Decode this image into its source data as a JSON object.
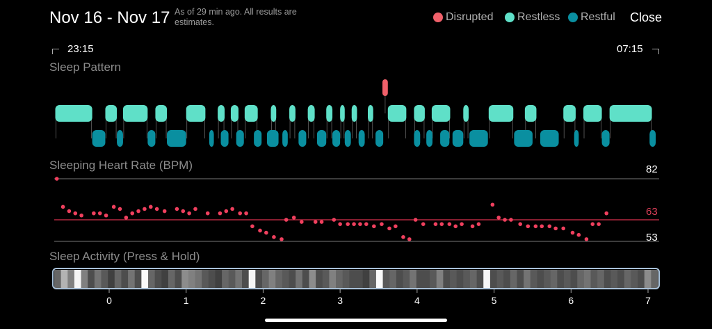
{
  "header": {
    "title": "Nov 16 - Nov 17",
    "subtitle": "As of 29 min ago. All results are estimates.",
    "close_label": "Close"
  },
  "legend": [
    {
      "label": "Disrupted",
      "color": "#f0606a"
    },
    {
      "label": "Restless",
      "color": "#5fe0c8"
    },
    {
      "label": "Restful",
      "color": "#0a8fa0"
    }
  ],
  "time_range": {
    "start": "23:15",
    "end": "07:15"
  },
  "sections": {
    "sleep_pattern": "Sleep Pattern",
    "heart_rate": "Sleeping Heart Rate (BPM)",
    "activity": "Sleep Activity (Press & Hold)"
  },
  "heart_rate_scale": {
    "max": "82",
    "avg": "63",
    "min": "53"
  },
  "x_axis": [
    "0",
    "1",
    "2",
    "3",
    "4",
    "5",
    "6",
    "7"
  ],
  "chart_data": [
    {
      "type": "scatter",
      "title": "Sleeping Heart Rate (BPM)",
      "x_range": [
        -0.7,
        7.1
      ],
      "y_range": [
        53,
        82
      ],
      "reference_lines": {
        "max": 82,
        "avg": 63,
        "min": 53
      },
      "x": [
        -0.68,
        -0.6,
        -0.52,
        -0.44,
        -0.36,
        -0.2,
        -0.12,
        -0.04,
        0.06,
        0.14,
        0.22,
        0.3,
        0.38,
        0.46,
        0.54,
        0.62,
        0.72,
        0.88,
        0.96,
        1.04,
        1.12,
        1.28,
        1.44,
        1.52,
        1.6,
        1.7,
        1.78,
        1.86,
        1.96,
        2.04,
        2.14,
        2.24,
        2.3,
        2.4,
        2.5,
        2.68,
        2.76,
        2.92,
        3.0,
        3.1,
        3.18,
        3.26,
        3.34,
        3.44,
        3.54,
        3.64,
        3.72,
        3.82,
        3.9,
        3.98,
        4.08,
        4.24,
        4.32,
        4.42,
        4.5,
        4.58,
        4.72,
        4.8,
        4.98,
        5.06,
        5.14,
        5.22,
        5.34,
        5.44,
        5.54,
        5.62,
        5.72,
        5.8,
        5.9,
        6.02,
        6.1,
        6.2,
        6.28,
        6.36,
        6.46
      ],
      "y": [
        82,
        69,
        67,
        66,
        65,
        66,
        66,
        65,
        69,
        68,
        64,
        66,
        67,
        68,
        69,
        68,
        67,
        68,
        67,
        66,
        68,
        66,
        66,
        67,
        68,
        66,
        66,
        60,
        58,
        57,
        55,
        54,
        63,
        64,
        62,
        62,
        62,
        63,
        61,
        61,
        61,
        61,
        61,
        60,
        61,
        59,
        60,
        55,
        54,
        63,
        61,
        61,
        61,
        61,
        60,
        61,
        60,
        61,
        70,
        64,
        63,
        63,
        61,
        60,
        60,
        60,
        60,
        59,
        59,
        57,
        56,
        54,
        61,
        61,
        66
      ]
    },
    {
      "type": "bar",
      "title": "Sleep Pattern",
      "categories": [
        "Disrupted",
        "Restless",
        "Restful"
      ],
      "restless_segments": [
        [
          -0.7,
          -0.22
        ],
        [
          -0.05,
          0.1
        ],
        [
          0.18,
          0.5
        ],
        [
          0.6,
          0.75
        ],
        [
          1.0,
          1.25
        ],
        [
          1.41,
          1.5
        ],
        [
          1.58,
          1.68
        ],
        [
          1.76,
          1.93
        ],
        [
          2.1,
          2.17
        ],
        [
          2.34,
          2.42
        ],
        [
          2.58,
          2.67
        ],
        [
          2.82,
          2.9
        ],
        [
          3.0,
          3.06
        ],
        [
          3.15,
          3.22
        ],
        [
          3.36,
          3.43
        ],
        [
          3.62,
          3.86
        ],
        [
          3.96,
          4.1
        ],
        [
          4.19,
          4.43
        ],
        [
          4.6,
          4.67
        ],
        [
          4.93,
          5.25
        ],
        [
          5.4,
          5.55
        ],
        [
          5.9,
          6.06
        ],
        [
          6.16,
          6.4
        ],
        [
          6.5,
          7.05
        ]
      ],
      "restful_segments": [
        [
          -0.22,
          -0.05
        ],
        [
          0.1,
          0.18
        ],
        [
          0.5,
          0.6
        ],
        [
          0.75,
          1.0
        ],
        [
          1.3,
          1.36
        ],
        [
          1.45,
          1.55
        ],
        [
          1.65,
          1.75
        ],
        [
          1.88,
          1.98
        ],
        [
          2.05,
          2.2
        ],
        [
          2.25,
          2.32
        ],
        [
          2.46,
          2.56
        ],
        [
          2.7,
          2.82
        ],
        [
          2.9,
          3.0
        ],
        [
          3.06,
          3.14
        ],
        [
          3.24,
          3.32
        ],
        [
          3.46,
          3.56
        ],
        [
          3.96,
          4.04
        ],
        [
          4.12,
          4.2
        ],
        [
          4.3,
          4.42
        ],
        [
          4.46,
          4.6
        ],
        [
          4.68,
          4.92
        ],
        [
          5.26,
          5.5
        ],
        [
          5.6,
          5.84
        ],
        [
          6.04,
          6.1
        ],
        [
          6.4,
          6.5
        ],
        [
          7.02,
          7.1
        ]
      ],
      "disrupted_segments": [
        [
          3.55,
          3.62
        ]
      ]
    },
    {
      "type": "heatmap",
      "title": "Sleep Activity (Press & Hold)",
      "x_range": [
        -0.7,
        7.1
      ],
      "cells": [
        0.4,
        0.7,
        0.5,
        0.96,
        0.5,
        0.3,
        0.45,
        0.35,
        0.25,
        0.4,
        0.3,
        0.45,
        0.3,
        0.98,
        0.4,
        0.3,
        0.25,
        0.4,
        0.3,
        0.55,
        0.5,
        0.45,
        0.35,
        0.3,
        0.25,
        0.4,
        0.35,
        0.45,
        0.3,
        0.96,
        0.3,
        0.4,
        0.5,
        0.4,
        0.35,
        0.3,
        0.45,
        0.3,
        0.55,
        0.3,
        0.35,
        0.5,
        0.4,
        0.35,
        0.3,
        0.3,
        0.25,
        0.4,
        0.98,
        0.35,
        0.4,
        0.3,
        0.35,
        0.45,
        0.3,
        0.3,
        0.35,
        0.5,
        0.3,
        0.35,
        0.3,
        0.35,
        0.4,
        0.3,
        0.97,
        0.3,
        0.35,
        0.3,
        0.4,
        0.3,
        0.45,
        0.35,
        0.3,
        0.35,
        0.4,
        0.3,
        0.35,
        0.3,
        0.4,
        0.45,
        0.35,
        0.4,
        0.3,
        0.35,
        0.3,
        0.4,
        0.35,
        0.3,
        0.55,
        0.4
      ]
    }
  ]
}
